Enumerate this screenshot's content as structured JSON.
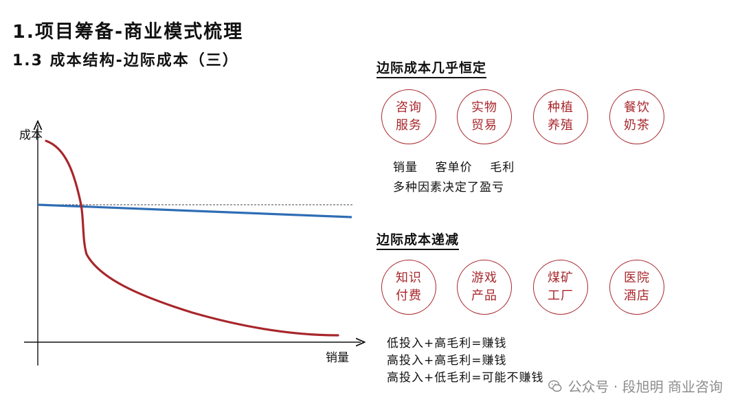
{
  "title": "1.项目筹备-商业模式梳理",
  "subtitle": "1.3 成本结构-边际成本（三）",
  "chart": {
    "y_label": "成本",
    "x_label": "销量"
  },
  "section_constant": {
    "heading": "边际成本几乎恒定",
    "circles": [
      "咨询服务",
      "实物贸易",
      "种植养殖",
      "餐饮奶茶"
    ],
    "note_line1": "销量    客单价    毛利",
    "note_line2": "多种因素决定了盈亏"
  },
  "section_decreasing": {
    "heading": "边际成本递减",
    "circles": [
      "知识付费",
      "游戏产品",
      "煤矿工厂",
      "医院酒店"
    ],
    "notes": [
      "低投入+高毛利=赚钱",
      "高投入+高毛利=赚钱",
      "高投入+低毛利=可能不赚钱"
    ]
  },
  "watermark": "公众号 · 段旭明 商业咨询",
  "colors": {
    "curve_red": "#a8262b",
    "line_blue": "#2e6db4",
    "circle_red": "#a8262b"
  }
}
